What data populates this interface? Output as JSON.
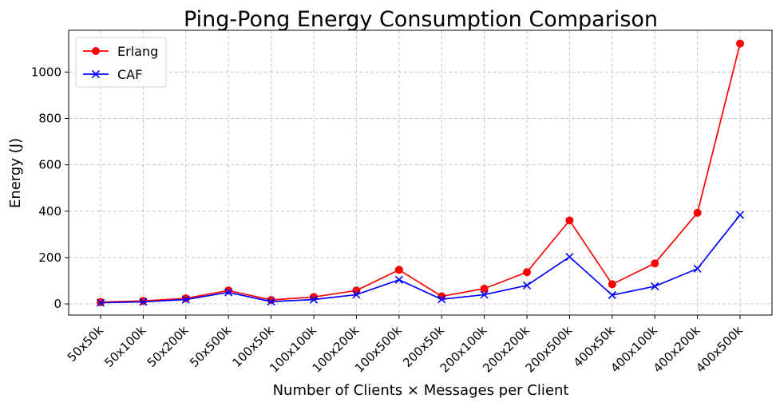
{
  "chart_data": {
    "type": "line",
    "title": "Ping-Pong Energy Consumption Comparison",
    "xlabel": "Number of Clients × Messages per Client",
    "ylabel": "Energy (J)",
    "categories": [
      "50x50k",
      "50x100k",
      "50x200k",
      "50x500k",
      "100x50k",
      "100x100k",
      "100x200k",
      "100x500k",
      "200x50k",
      "200x100k",
      "200x200k",
      "200x500k",
      "400x50k",
      "400x100k",
      "400x200k",
      "400x500k"
    ],
    "series": [
      {
        "name": "Erlang",
        "color": "#ff0000",
        "marker": "circle",
        "values": [
          8,
          13,
          24,
          58,
          17,
          30,
          58,
          147,
          33,
          66,
          137,
          360,
          85,
          175,
          393,
          1123
        ]
      },
      {
        "name": "CAF",
        "color": "#0000ff",
        "marker": "x",
        "values": [
          5,
          9,
          19,
          50,
          10,
          19,
          40,
          104,
          20,
          40,
          80,
          203,
          38,
          76,
          152,
          384
        ]
      }
    ],
    "yticks": [
      0,
      200,
      400,
      600,
      800,
      1000
    ],
    "ylim": [
      -48,
      1180
    ],
    "grid": true,
    "legend": "top-left"
  }
}
